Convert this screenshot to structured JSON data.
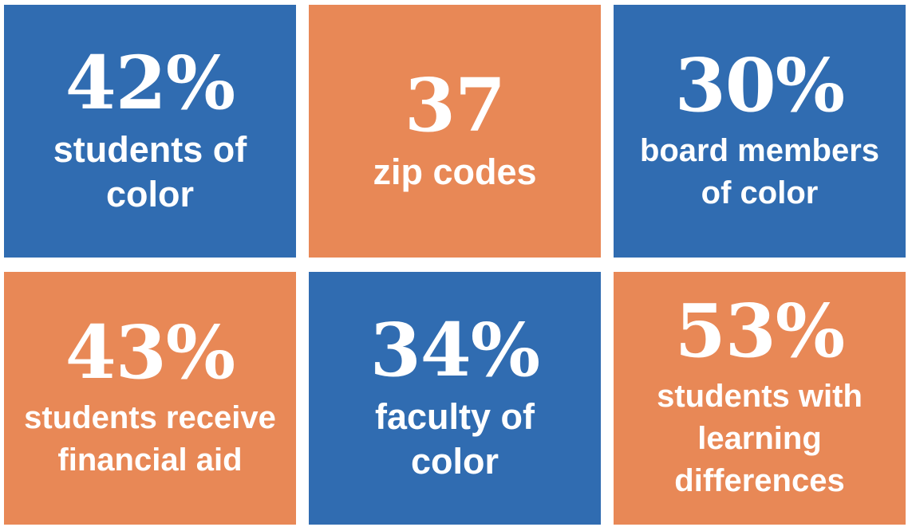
{
  "tiles": [
    {
      "stat": "42%",
      "lines": [
        "students of",
        "color"
      ],
      "color": "#306cb1"
    },
    {
      "stat": "37",
      "lines": [
        "zip codes"
      ],
      "color": "#e88856"
    },
    {
      "stat": "30%",
      "lines": [
        "board members",
        "of color"
      ],
      "color": "#306cb1"
    },
    {
      "stat": "43%",
      "lines": [
        "students receive",
        "financial aid"
      ],
      "color": "#e88856"
    },
    {
      "stat": "34%",
      "lines": [
        "faculty of",
        "color"
      ],
      "color": "#306cb1"
    },
    {
      "stat": "53%",
      "lines": [
        "students with",
        "learning",
        "differences"
      ],
      "color": "#e88856"
    }
  ]
}
